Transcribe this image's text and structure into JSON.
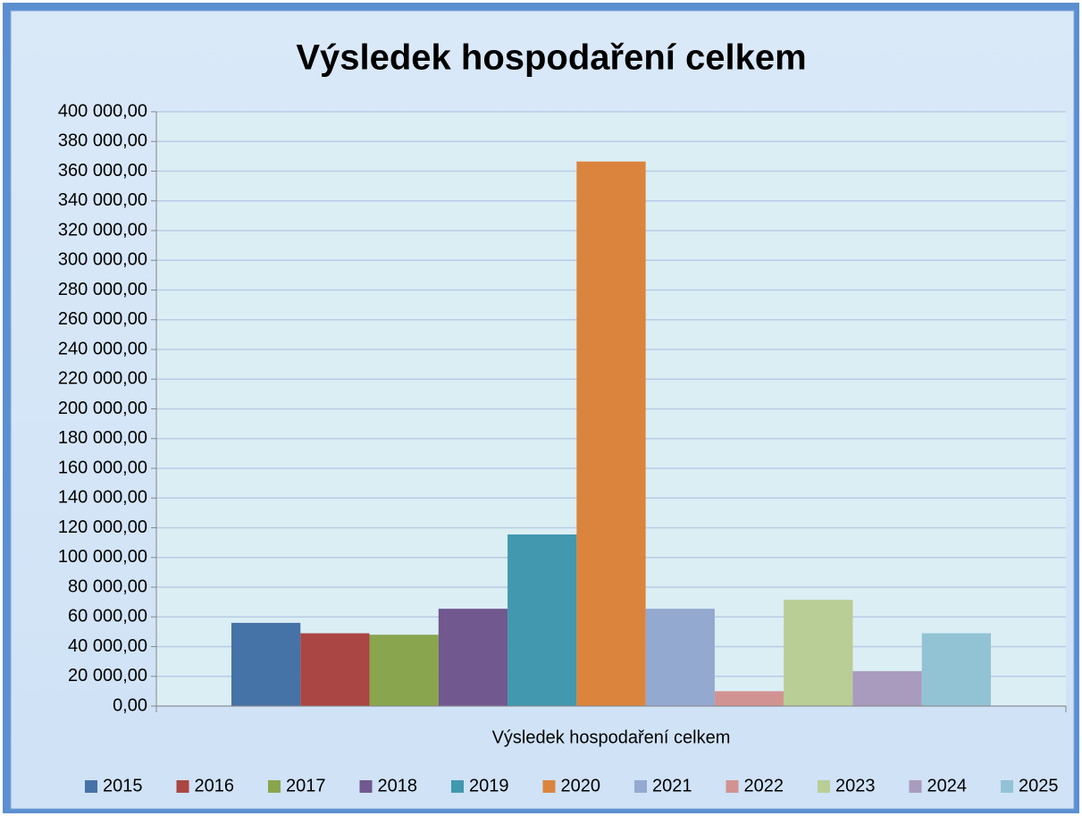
{
  "chart_data": {
    "type": "bar",
    "title": "Výsledek hospodaření celkem",
    "categories": [
      "Výsledek hospodaření celkem"
    ],
    "series": [
      {
        "name": "2015",
        "color": "#4572a7",
        "values": [
          56000
        ]
      },
      {
        "name": "2016",
        "color": "#aa4643",
        "values": [
          49000
        ]
      },
      {
        "name": "2017",
        "color": "#89a54e",
        "values": [
          48000
        ]
      },
      {
        "name": "2018",
        "color": "#71588f",
        "values": [
          65500
        ]
      },
      {
        "name": "2019",
        "color": "#4198af",
        "values": [
          115500
        ]
      },
      {
        "name": "2020",
        "color": "#db843d",
        "values": [
          366500
        ]
      },
      {
        "name": "2021",
        "color": "#93a9cf",
        "values": [
          65500
        ]
      },
      {
        "name": "2022",
        "color": "#d19392",
        "values": [
          10000
        ]
      },
      {
        "name": "2023",
        "color": "#b9cd96",
        "values": [
          71500
        ]
      },
      {
        "name": "2024",
        "color": "#a99bbd",
        "values": [
          23500
        ]
      },
      {
        "name": "2025",
        "color": "#92c3d4",
        "values": [
          49000
        ]
      }
    ],
    "ylim": [
      0,
      400000
    ],
    "yticks": [
      {
        "value": 0,
        "label": "0,00"
      },
      {
        "value": 20000,
        "label": "20 000,00"
      },
      {
        "value": 40000,
        "label": "40 000,00"
      },
      {
        "value": 60000,
        "label": "60 000,00"
      },
      {
        "value": 80000,
        "label": "80 000,00"
      },
      {
        "value": 100000,
        "label": "100 000,00"
      },
      {
        "value": 120000,
        "label": "120 000,00"
      },
      {
        "value": 140000,
        "label": "140 000,00"
      },
      {
        "value": 160000,
        "label": "160 000,00"
      },
      {
        "value": 180000,
        "label": "180 000,00"
      },
      {
        "value": 200000,
        "label": "200 000,00"
      },
      {
        "value": 220000,
        "label": "220 000,00"
      },
      {
        "value": 240000,
        "label": "240 000,00"
      },
      {
        "value": 260000,
        "label": "260 000,00"
      },
      {
        "value": 280000,
        "label": "280 000,00"
      },
      {
        "value": 300000,
        "label": "300 000,00"
      },
      {
        "value": 320000,
        "label": "320 000,00"
      },
      {
        "value": 340000,
        "label": "340 000,00"
      },
      {
        "value": 360000,
        "label": "360 000,00"
      },
      {
        "value": 380000,
        "label": "380 000,00"
      },
      {
        "value": 400000,
        "label": "400 000,00"
      }
    ],
    "grid": true,
    "legend": "bottom"
  }
}
